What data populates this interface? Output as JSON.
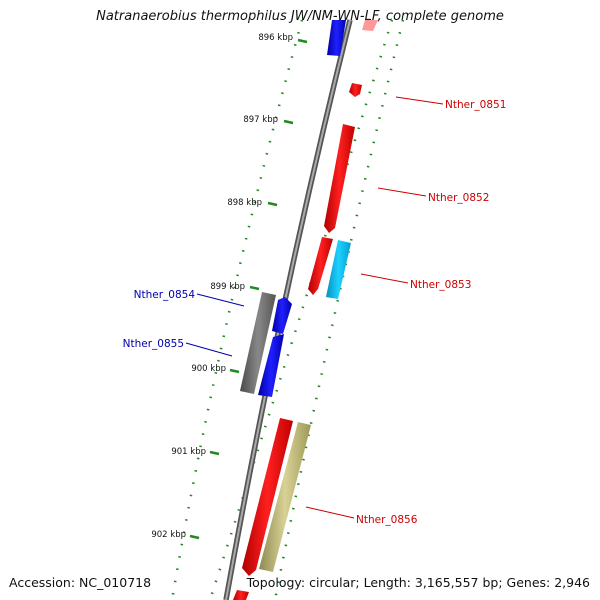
{
  "title": "Natranaerobius thermophilus JW/NM-WN-LF, complete genome",
  "footer": {
    "accession": "Accession: NC_010718",
    "summary": "Topology: circular; Length: 3,165,557 bp; Genes: 2,946"
  },
  "ticks": [
    "896 kbp",
    "897 kbp",
    "898 kbp",
    "899 kbp",
    "900 kbp",
    "901 kbp",
    "902 kbp"
  ],
  "gene_labels": [
    {
      "name": "Nther_0851",
      "color": "#cc0000"
    },
    {
      "name": "Nther_0852",
      "color": "#cc0000"
    },
    {
      "name": "Nther_0853",
      "color": "#cc0000"
    },
    {
      "name": "Nther_0854",
      "color": "#0000aa"
    },
    {
      "name": "Nther_0855",
      "color": "#0000aa"
    },
    {
      "name": "Nther_0856",
      "color": "#cc0000"
    }
  ],
  "colors": {
    "red_gene": "#ff0000",
    "blue_gene": "#0000ee",
    "cyan_gene": "#00bbee",
    "gray_gene": "#666666",
    "khaki_gene": "#b3ad6e",
    "backbone": "#888888",
    "tick_green": "#228822"
  }
}
